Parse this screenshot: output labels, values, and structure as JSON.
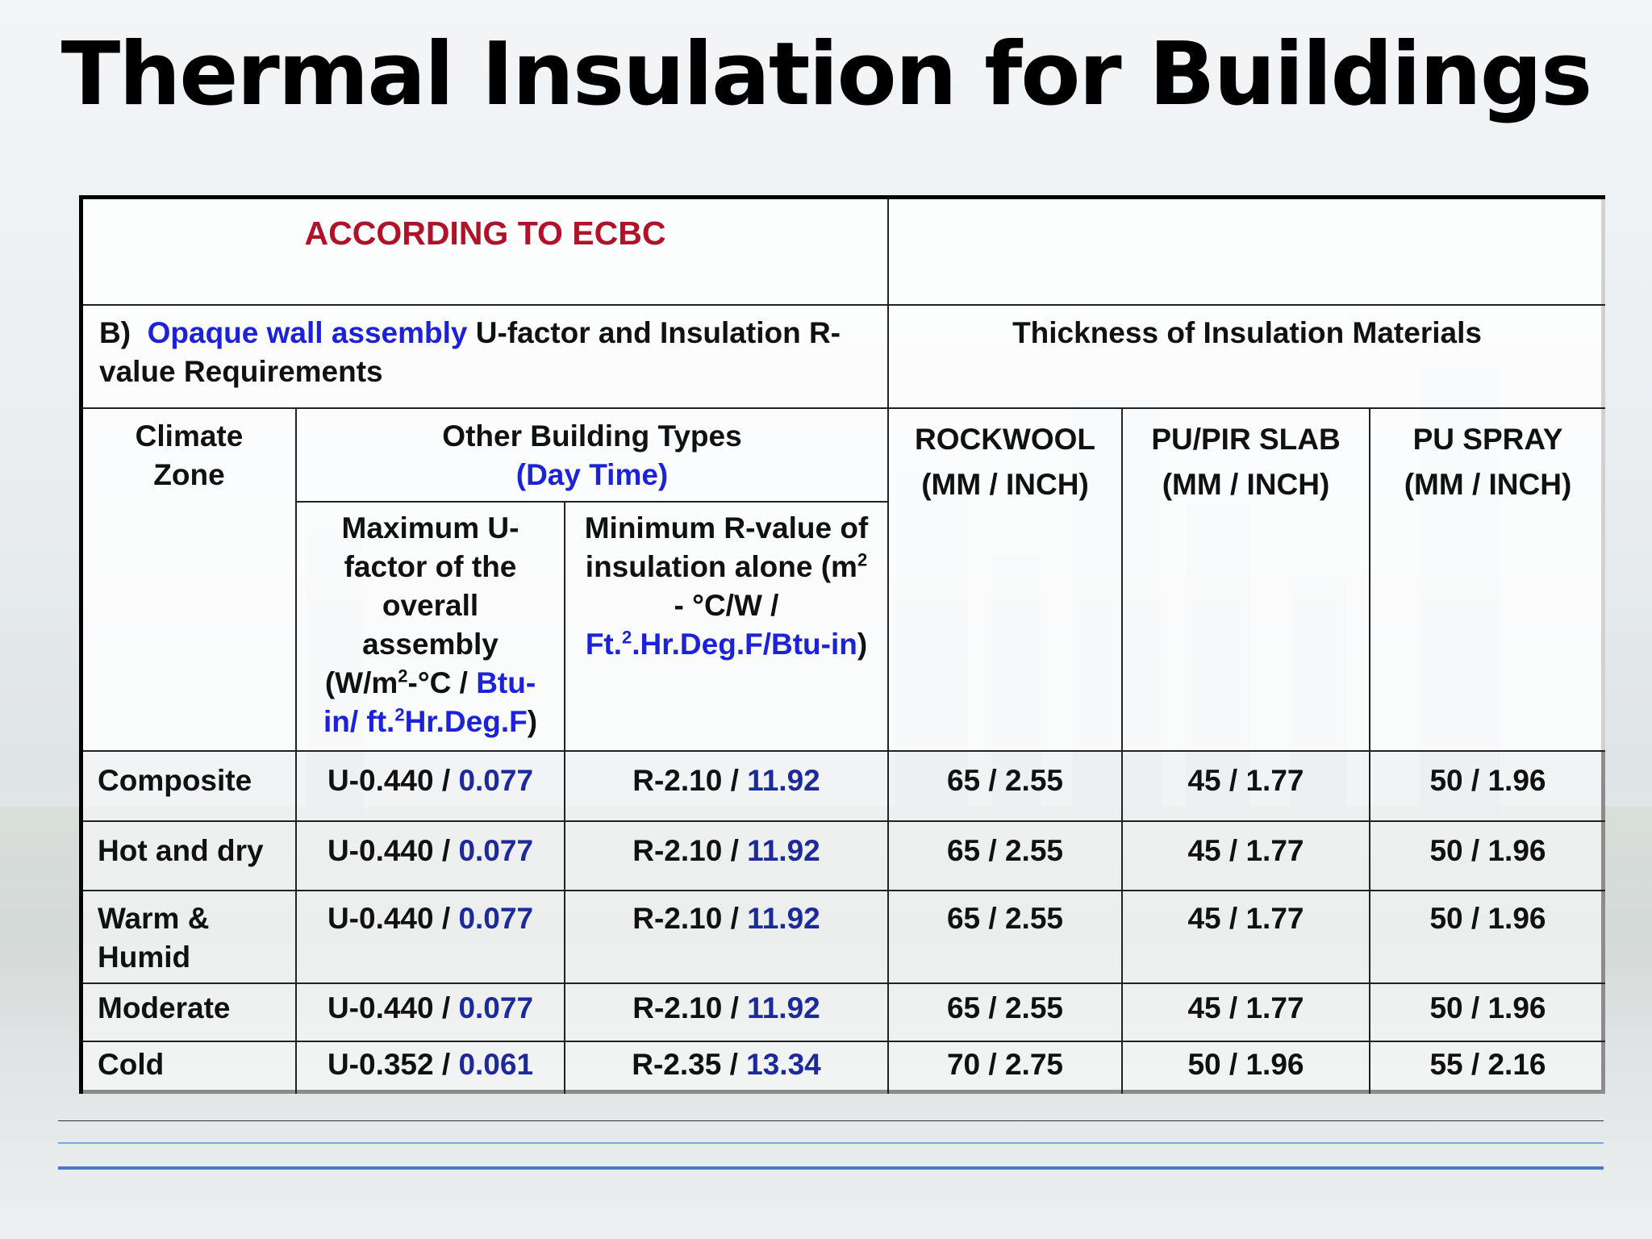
{
  "title": "Thermal Insulation for Buildings",
  "header": {
    "according": "ACCORDING TO ECBC",
    "section_prefix": "B)",
    "section_highlight": "Opaque wall assembly",
    "section_rest": "U-factor and Insulation R- value Requirements",
    "thickness_title": "Thickness of Insulation Materials",
    "climate_zone": "Climate Zone",
    "other_types": "Other Building Types",
    "day_time": "(Day Time)",
    "max_u": {
      "line1": "Maximum U-factor of the overall assembly",
      "unit_open": "(W/m",
      "unit_sup": "2",
      "unit_mid": "-°C / ",
      "unit_blue1": "Btu-in/ ft.",
      "unit_sup2": "2",
      "unit_blue2": "Hr.Deg.F",
      "unit_close": ")"
    },
    "min_r": {
      "line1": "Minimum  R-value of insulation alone",
      "unit_open": "(m",
      "unit_sup": "2",
      "unit_mid": " - °C/W  / ",
      "unit_blue1": "Ft.",
      "unit_sup2": "2",
      "unit_blue2": ".Hr.Deg.F/Btu-in",
      "unit_close": ")"
    },
    "materials": [
      {
        "name": "ROCKWOOL",
        "unit": "(MM / INCH)"
      },
      {
        "name": "PU/PIR SLAB",
        "unit": "(MM / INCH)"
      },
      {
        "name": "PU SPRAY",
        "unit": "(MM / INCH)"
      }
    ]
  },
  "rows": [
    {
      "zone": "Composite",
      "u_si": "U-0.440 / ",
      "u_ip": "0.077",
      "r_si": "R-2.10 / ",
      "r_ip": "11.92",
      "rockwool": "65 / 2.55",
      "pu_pir": "45 / 1.77",
      "pu_spray": "50 / 1.96"
    },
    {
      "zone": "Hot and dry",
      "u_si": "U-0.440 / ",
      "u_ip": "0.077",
      "r_si": "R-2.10 / ",
      "r_ip": "11.92",
      "rockwool": "65 / 2.55",
      "pu_pir": "45 / 1.77",
      "pu_spray": "50 / 1.96"
    },
    {
      "zone": "Warm & Humid",
      "u_si": "U-0.440 / ",
      "u_ip": "0.077",
      "r_si": "R-2.10 / ",
      "r_ip": "11.92",
      "rockwool": "65 / 2.55",
      "pu_pir": "45 / 1.77",
      "pu_spray": "50 / 1.96"
    },
    {
      "zone": "Moderate",
      "u_si": "U-0.440 / ",
      "u_ip": "0.077",
      "r_si": "R-2.10 / ",
      "r_ip": "11.92",
      "rockwool": "65 / 2.55",
      "pu_pir": "45 / 1.77",
      "pu_spray": "50 / 1.96"
    },
    {
      "zone": "Cold",
      "u_si": "U-0.352 / ",
      "u_ip": "0.061",
      "r_si": "R-2.35 / ",
      "r_ip": "13.34",
      "rockwool": "70 / 2.75",
      "pu_pir": "50 / 1.96",
      "pu_spray": "55 / 2.16"
    }
  ],
  "colors": {
    "accent_red": "#b0122a",
    "accent_blue": "#1c22d8",
    "value_navy": "#1c2a9a",
    "rule_blue": "#4a78c8"
  }
}
